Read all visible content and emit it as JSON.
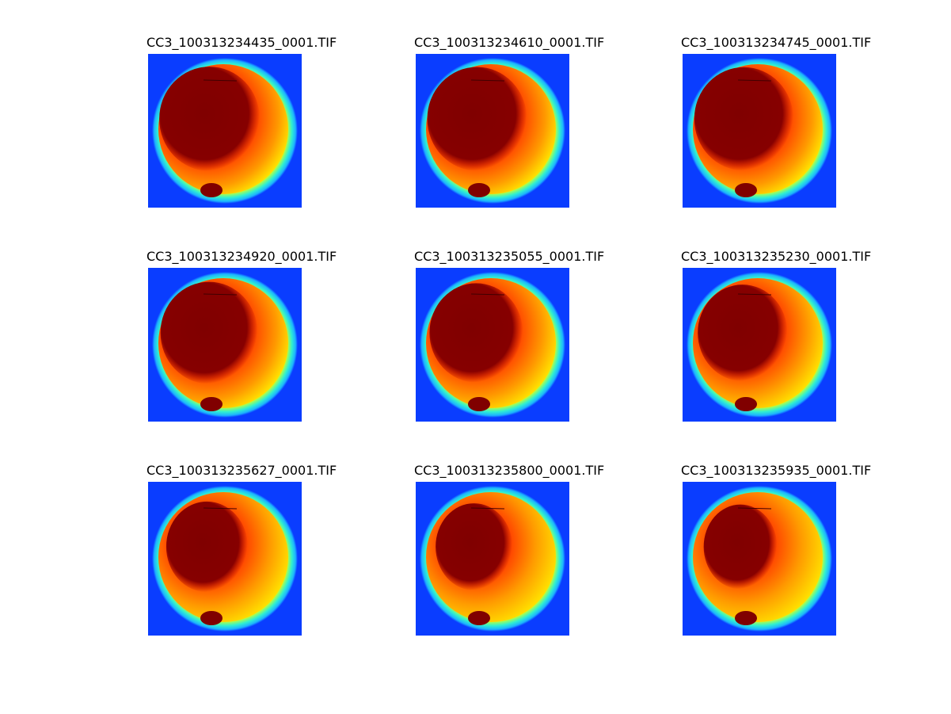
{
  "figure": {
    "colormap": "jet",
    "background_color": "#ffffff",
    "image_background_color": "#0a3dff",
    "panels": [
      {
        "title": "CC3_100313234435_0001.TIF",
        "dark_core_extent": 0.95
      },
      {
        "title": "CC3_100313234610_0001.TIF",
        "dark_core_extent": 0.93
      },
      {
        "title": "CC3_100313234745_0001.TIF",
        "dark_core_extent": 0.92
      },
      {
        "title": "CC3_100313234920_0001.TIF",
        "dark_core_extent": 0.88
      },
      {
        "title": "CC3_100313235055_0001.TIF",
        "dark_core_extent": 0.8
      },
      {
        "title": "CC3_100313235230_0001.TIF",
        "dark_core_extent": 0.72
      },
      {
        "title": "CC3_100313235627_0001.TIF",
        "dark_core_extent": 0.55
      },
      {
        "title": "CC3_100313235800_0001.TIF",
        "dark_core_extent": 0.45
      },
      {
        "title": "CC3_100313235935_0001.TIF",
        "dark_core_extent": 0.38
      }
    ]
  }
}
